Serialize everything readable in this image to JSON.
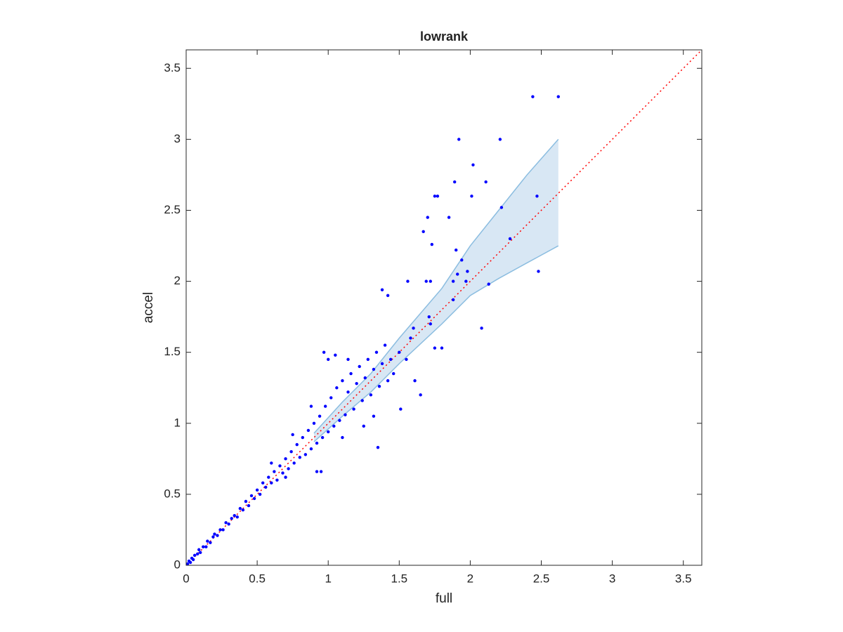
{
  "chart_data": {
    "type": "scatter",
    "title": "lowrank",
    "x_label": "full",
    "y_label": "accel",
    "color": "#0000ff",
    "x": [
      0.01,
      0.02,
      0.03,
      0.04,
      0.05,
      0.06,
      0.08,
      0.09,
      0.1,
      0.12,
      0.14,
      0.15,
      0.17,
      0.19,
      0.2,
      0.22,
      0.24,
      0.26,
      0.28,
      0.3,
      0.32,
      0.34,
      0.36,
      0.38,
      0.4,
      0.42,
      0.44,
      0.46,
      0.48,
      0.5,
      0.52,
      0.54,
      0.56,
      0.58,
      0.6,
      0.62,
      0.64,
      0.66,
      0.68,
      0.7,
      0.72,
      0.74,
      0.76,
      0.78,
      0.8,
      0.82,
      0.84,
      0.86,
      0.88,
      0.9,
      0.92,
      0.94,
      0.96,
      0.98,
      1.0,
      1.0,
      1.02,
      1.04,
      1.06,
      1.08,
      1.1,
      1.12,
      1.14,
      1.16,
      1.18,
      1.2,
      1.22,
      1.24,
      1.26,
      1.28,
      1.3,
      1.32,
      1.34,
      1.36,
      1.38,
      1.4,
      1.42,
      1.44,
      1.46,
      1.05,
      0.97,
      1.14,
      0.7,
      0.75,
      0.88,
      0.6,
      1.55,
      1.58,
      1.25,
      1.1,
      2.44,
      2.62,
      1.92,
      2.21,
      2.02,
      2.11,
      1.89,
      1.77,
      1.75,
      2.01,
      2.47,
      1.85,
      1.7,
      2.22,
      1.67,
      1.73,
      2.28,
      1.9,
      1.94,
      1.98,
      2.48,
      1.69,
      1.72,
      1.88,
      1.97,
      2.13,
      1.56,
      1.38,
      1.42,
      1.91,
      1.88,
      1.71,
      1.72,
      2.08,
      1.6,
      1.8,
      1.75,
      1.5,
      1.61,
      1.65,
      1.51,
      1.35,
      1.32,
      0.95,
      0.92
    ],
    "y": [
      0.01,
      0.03,
      0.02,
      0.05,
      0.04,
      0.07,
      0.08,
      0.11,
      0.09,
      0.13,
      0.13,
      0.17,
      0.16,
      0.2,
      0.22,
      0.21,
      0.25,
      0.25,
      0.3,
      0.29,
      0.33,
      0.35,
      0.34,
      0.4,
      0.39,
      0.45,
      0.42,
      0.49,
      0.47,
      0.53,
      0.5,
      0.58,
      0.55,
      0.62,
      0.58,
      0.66,
      0.6,
      0.7,
      0.65,
      0.75,
      0.68,
      0.8,
      0.72,
      0.85,
      0.76,
      0.9,
      0.78,
      0.95,
      0.82,
      1.0,
      0.86,
      1.05,
      0.9,
      1.12,
      0.94,
      1.45,
      1.18,
      0.98,
      1.25,
      1.02,
      1.3,
      1.06,
      1.22,
      1.35,
      1.1,
      1.28,
      1.4,
      1.16,
      1.32,
      1.45,
      1.2,
      1.38,
      1.5,
      1.26,
      1.42,
      1.55,
      1.3,
      1.45,
      1.35,
      1.48,
      1.5,
      1.45,
      0.62,
      0.92,
      1.12,
      0.72,
      1.45,
      1.6,
      0.98,
      0.9,
      3.3,
      3.3,
      3.0,
      3.0,
      2.82,
      2.7,
      2.7,
      2.6,
      2.6,
      2.6,
      2.6,
      2.45,
      2.45,
      2.52,
      2.35,
      2.26,
      2.3,
      2.22,
      2.15,
      2.07,
      2.07,
      2.0,
      2.0,
      2.0,
      2.0,
      1.98,
      2.0,
      1.94,
      1.9,
      2.05,
      1.87,
      1.75,
      1.7,
      1.67,
      1.67,
      1.53,
      1.53,
      1.5,
      1.3,
      1.2,
      1.1,
      0.83,
      1.05,
      0.66,
      0.66
    ],
    "band": {
      "x": [
        0.9,
        1.1,
        1.3,
        1.5,
        1.8,
        2.0,
        2.2,
        2.4,
        2.62
      ],
      "upper": [
        0.93,
        1.15,
        1.35,
        1.6,
        1.95,
        2.25,
        2.5,
        2.75,
        3.0
      ],
      "lower": [
        0.87,
        1.05,
        1.22,
        1.42,
        1.7,
        1.9,
        2.02,
        2.13,
        2.25
      ],
      "fill": "#d8e7f4",
      "edge": "#8bbde0"
    },
    "identity_line_color": "#ff0000",
    "xlim": [
      0,
      3.63
    ],
    "ylim": [
      0,
      3.63
    ],
    "xticks": [
      0,
      0.5,
      1,
      1.5,
      2,
      2.5,
      3,
      3.5
    ],
    "yticks": [
      0,
      0.5,
      1,
      1.5,
      2,
      2.5,
      3,
      3.5
    ]
  }
}
